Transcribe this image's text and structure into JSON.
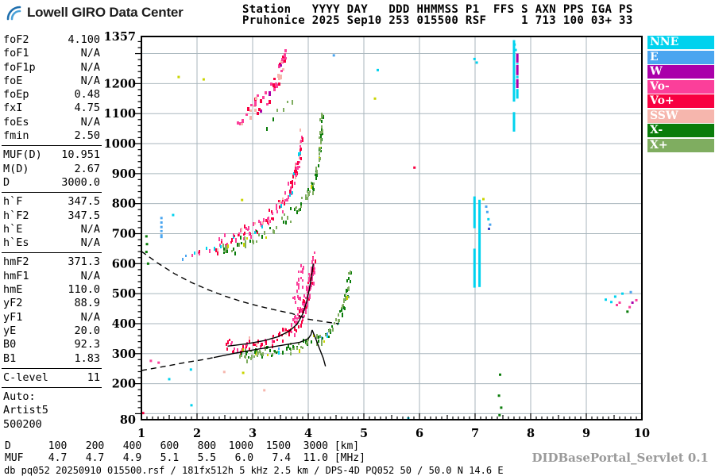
{
  "header": {
    "brand": "Lowell GIRO Data Center",
    "logo_color_dark": "#1f6fae",
    "logo_color_light": "#4aa1d8",
    "station_line1": "Station   YYYY DAY   DDD HHMMSS P1  FFS S AXN PPS IGA PS",
    "station_line2": "Pruhonice 2025 Sep10 253 015500 RSF     1 713 100 03+ 33"
  },
  "sidebar": {
    "groups": [
      {
        "rows": [
          [
            "foF2",
            "4.100"
          ],
          [
            "foF1",
            "N/A"
          ],
          [
            "foF1p",
            "N/A"
          ],
          [
            "foE",
            "N/A"
          ],
          [
            "foEp",
            "0.48"
          ],
          [
            "fxI",
            "4.75"
          ],
          [
            "foEs",
            "N/A"
          ],
          [
            "fmin",
            "2.50"
          ]
        ]
      },
      {
        "rows": [
          [
            "MUF(D)",
            "10.951"
          ],
          [
            "M(D)",
            "2.67"
          ],
          [
            "D",
            "3000.0"
          ]
        ]
      },
      {
        "rows": [
          [
            "h`F",
            "347.5"
          ],
          [
            "h`F2",
            "347.5"
          ],
          [
            "h`E",
            "N/A"
          ],
          [
            "h`Es",
            "N/A"
          ]
        ]
      },
      {
        "rows": [
          [
            "hmF2",
            "371.3"
          ],
          [
            "hmF1",
            "N/A"
          ],
          [
            "hmE",
            "110.0"
          ],
          [
            "yF2",
            "88.9"
          ],
          [
            "yF1",
            "N/A"
          ],
          [
            "yE",
            "20.0"
          ],
          [
            "B0",
            "92.3"
          ],
          [
            "B1",
            "1.83"
          ]
        ]
      },
      {
        "rows": [
          [
            "C-level",
            "11"
          ]
        ]
      },
      {
        "rows": [
          [
            "Auto:"
          ],
          [
            "Artist5"
          ],
          [
            "500200"
          ]
        ]
      }
    ]
  },
  "legend_order": [
    "NNE",
    "E",
    "W",
    "Vo-",
    "Vo+",
    "SSW",
    "X-",
    "X+"
  ],
  "footer": {
    "d_line": "D      100   200   400   600   800  1000  1500  3000 [km]",
    "muf_line": "MUF    4.7   4.7   4.9   5.1   5.5   6.0   7.4  11.0 [MHz]",
    "status_line": "db pq052 20250910 015500.rsf / 181fx512h 5 kHz 2.5 km / DPS-4D PQ052 50 / 50.0 N 14.6 E",
    "servlet": "DIDBasePortal_Servlet 0.1"
  },
  "chart_data": {
    "type": "scatter",
    "title": "ionogram",
    "seed": 7,
    "grid_color": "#a9b6bd",
    "signals": {
      "NNE": "#00d2ee",
      "E": "#4aa5f0",
      "W": "#aa00aa",
      "Vo-": "#fb3f9a",
      "Vo+": "#f80040",
      "SSW": "#f6b6ad",
      "X-": "#0a7c0a",
      "X+": "#7fad60",
      "yellow": "#c9d400",
      "blue": "#3a46c8"
    },
    "axes": {
      "x": {
        "min": 1,
        "max": 10,
        "unit": "MHz",
        "labels": [
          1,
          2,
          3,
          4,
          5,
          6,
          7,
          8,
          9,
          10
        ],
        "grid": [
          2,
          3,
          4,
          5,
          6,
          7,
          8,
          9
        ],
        "minor_step": 0.1
      },
      "y": {
        "min": 80,
        "max": 1357,
        "unit": "km",
        "labels": [
          1357,
          1200,
          1100,
          1000,
          900,
          800,
          700,
          600,
          500,
          400,
          300,
          200,
          80
        ],
        "grid": [
          100,
          200,
          300,
          400,
          500,
          600,
          700,
          800,
          900,
          1000,
          1100,
          1200,
          1300
        ],
        "minor_step": 20
      }
    },
    "traces": [
      {
        "name": "F1-O-flat",
        "colors": [
          [
            "Vo+",
            6
          ],
          [
            "Vo-",
            2
          ],
          [
            "SSW",
            2
          ]
        ],
        "spread": 10,
        "density": 0.85,
        "layers": 2,
        "step": 2.2,
        "points": [
          [
            2.5,
            328
          ],
          [
            2.8,
            334
          ],
          [
            3.1,
            343
          ],
          [
            3.35,
            355
          ],
          [
            3.55,
            371
          ],
          [
            3.7,
            390
          ]
        ]
      },
      {
        "name": "F1-O-steep",
        "colors": [
          [
            "Vo-",
            7
          ],
          [
            "Vo+",
            3
          ]
        ],
        "spread": 15,
        "density": 0.95,
        "layers": 3,
        "step": 1.8,
        "points": [
          [
            3.7,
            390
          ],
          [
            3.82,
            420
          ],
          [
            3.9,
            455
          ],
          [
            3.97,
            500
          ],
          [
            4.03,
            550
          ],
          [
            4.07,
            590
          ],
          [
            4.09,
            618
          ]
        ]
      },
      {
        "name": "F1-O-spreadF",
        "colors": [
          [
            "Vo-",
            1
          ]
        ],
        "spread": 20,
        "density": 0.5,
        "layers": 2,
        "step": 2.5,
        "points": [
          [
            3.72,
            470
          ],
          [
            3.78,
            505
          ],
          [
            3.83,
            540
          ],
          [
            3.87,
            575
          ],
          [
            3.9,
            600
          ]
        ]
      },
      {
        "name": "F1-X",
        "colors": [
          [
            "X+",
            5
          ],
          [
            "X-",
            4
          ],
          [
            "yellow",
            1
          ],
          [
            "E",
            0.5
          ],
          [
            "NNE",
            0.5
          ]
        ],
        "spread": 9,
        "density": 0.8,
        "layers": 2,
        "step": 2.2,
        "points": [
          [
            2.75,
            298
          ],
          [
            3.05,
            304
          ],
          [
            3.35,
            312
          ],
          [
            3.65,
            322
          ],
          [
            3.95,
            336
          ],
          [
            4.2,
            354
          ],
          [
            4.38,
            378
          ],
          [
            4.52,
            412
          ],
          [
            4.62,
            455
          ],
          [
            4.69,
            510
          ],
          [
            4.73,
            570
          ]
        ]
      },
      {
        "name": "F2-O-left",
        "colors": [
          [
            "NNE",
            3
          ],
          [
            "E",
            2
          ],
          [
            "Vo+",
            3
          ],
          [
            "Vo-",
            2
          ]
        ],
        "spread": 5,
        "density": 0.5,
        "layers": 1,
        "step": 3,
        "points": [
          [
            1.75,
            622
          ],
          [
            2.0,
            642
          ],
          [
            2.2,
            655
          ],
          [
            2.35,
            666
          ]
        ]
      },
      {
        "name": "F2-O",
        "colors": [
          [
            "Vo-",
            4
          ],
          [
            "Vo+",
            3
          ],
          [
            "SSW",
            1
          ],
          [
            "NNE",
            1
          ]
        ],
        "spread": 12,
        "density": 0.85,
        "layers": 2,
        "step": 2.2,
        "points": [
          [
            2.35,
            666
          ],
          [
            2.65,
            688
          ],
          [
            2.95,
            716
          ],
          [
            3.25,
            752
          ],
          [
            3.5,
            800
          ],
          [
            3.65,
            848
          ],
          [
            3.76,
            905
          ],
          [
            3.83,
            960
          ],
          [
            3.87,
            1030
          ]
        ]
      },
      {
        "name": "F2-X",
        "colors": [
          [
            "X+",
            5
          ],
          [
            "X-",
            4
          ],
          [
            "yellow",
            1
          ]
        ],
        "spread": 10,
        "density": 0.7,
        "layers": 2,
        "step": 2.6,
        "points": [
          [
            2.45,
            650
          ],
          [
            2.8,
            672
          ],
          [
            3.15,
            700
          ],
          [
            3.5,
            738
          ],
          [
            3.8,
            786
          ],
          [
            4.0,
            838
          ],
          [
            4.12,
            895
          ],
          [
            4.18,
            950
          ],
          [
            4.22,
            1040
          ],
          [
            4.24,
            1100
          ]
        ]
      },
      {
        "name": "F3-O",
        "colors": [
          [
            "Vo-",
            5
          ],
          [
            "Vo+",
            2
          ],
          [
            "SSW",
            2
          ],
          [
            "W",
            1
          ]
        ],
        "spread": 16,
        "density": 0.75,
        "layers": 2,
        "step": 2.4,
        "w": 3,
        "points": [
          [
            2.7,
            1060
          ],
          [
            2.95,
            1105
          ],
          [
            3.15,
            1145
          ],
          [
            3.35,
            1190
          ],
          [
            3.48,
            1240
          ],
          [
            3.57,
            1295
          ]
        ]
      },
      {
        "name": "F3-X",
        "colors": [
          [
            "X-",
            3
          ],
          [
            "X+",
            2
          ]
        ],
        "spread": 10,
        "density": 0.3,
        "layers": 1,
        "step": 3,
        "points": [
          [
            3.2,
            1070
          ],
          [
            3.45,
            1110
          ],
          [
            3.7,
            1150
          ]
        ]
      }
    ],
    "columns": [
      {
        "name": "rfi-7.0-a",
        "color": "NNE",
        "f": 6.99,
        "w": 3,
        "segments": [
          [
            520,
            650
          ],
          [
            718,
            824
          ]
        ]
      },
      {
        "name": "rfi-7.0-b",
        "color": "NNE",
        "f": 7.08,
        "w": 3,
        "segments": [
          [
            522,
            813
          ]
        ]
      },
      {
        "name": "rfi-7.7-cyan",
        "color": "NNE",
        "f": 7.7,
        "w": 3,
        "segments": [
          [
            1040,
            1105
          ],
          [
            1140,
            1345
          ]
        ]
      },
      {
        "name": "rfi-7.76-magenta",
        "color": "W",
        "f": 7.76,
        "w": 3,
        "segments": [
          [
            1185,
            1215
          ],
          [
            1228,
            1262
          ],
          [
            1270,
            1300
          ]
        ]
      },
      {
        "name": "rfi-7.76-cyan",
        "color": "NNE",
        "f": 7.76,
        "w": 3,
        "segments": [
          [
            1150,
            1182
          ],
          [
            1218,
            1226
          ],
          [
            1264,
            1268
          ]
        ]
      },
      {
        "name": "e-column-1.36",
        "color": "E",
        "f": 1.36,
        "w": 3,
        "segments": [
          [
            685,
            698
          ],
          [
            705,
            712
          ],
          [
            718,
            726
          ],
          [
            733,
            741
          ],
          [
            748,
            756
          ]
        ]
      }
    ],
    "lines": [
      {
        "name": "muf-transmission-curve",
        "style": "dashed",
        "points": [
          [
            1.0,
            641
          ],
          [
            1.3,
            601
          ],
          [
            1.6,
            566
          ],
          [
            1.9,
            537
          ],
          [
            2.2,
            513
          ],
          [
            2.5,
            492
          ],
          [
            2.8,
            474
          ],
          [
            3.1,
            459
          ],
          [
            3.4,
            446
          ],
          [
            3.7,
            434
          ],
          [
            4.0,
            415
          ],
          [
            4.3,
            406
          ],
          [
            4.55,
            400
          ]
        ]
      },
      {
        "name": "profile-model-dashed",
        "style": "dashed",
        "points": [
          [
            1.0,
            244
          ],
          [
            1.4,
            257
          ],
          [
            1.8,
            271
          ],
          [
            2.1,
            280
          ],
          [
            2.3,
            287
          ]
        ]
      },
      {
        "name": "profile-solid",
        "style": "solid",
        "points": [
          [
            2.3,
            287
          ],
          [
            2.7,
            302
          ],
          [
            3.1,
            315
          ],
          [
            3.5,
            327
          ],
          [
            3.85,
            338
          ],
          [
            4.0,
            350
          ],
          [
            4.05,
            364
          ],
          [
            4.07,
            379
          ]
        ]
      },
      {
        "name": "profile-tail",
        "style": "solid",
        "points": [
          [
            4.07,
            379
          ],
          [
            4.13,
            352
          ],
          [
            4.2,
            318
          ],
          [
            4.27,
            285
          ],
          [
            4.31,
            258
          ]
        ]
      },
      {
        "name": "trace-fit",
        "style": "solid",
        "points": [
          [
            2.55,
            325
          ],
          [
            2.9,
            333
          ],
          [
            3.2,
            343
          ],
          [
            3.45,
            356
          ],
          [
            3.65,
            374
          ],
          [
            3.8,
            398
          ],
          [
            3.9,
            432
          ],
          [
            3.97,
            472
          ],
          [
            4.02,
            515
          ],
          [
            4.06,
            558
          ],
          [
            4.09,
            600
          ]
        ]
      }
    ],
    "points": [
      [
        1.03,
        102,
        "Vo+"
      ],
      [
        1.17,
        276,
        "Vo-"
      ],
      [
        1.31,
        270,
        "Vo-"
      ],
      [
        1.5,
        215,
        "NNE"
      ],
      [
        1.89,
        247,
        "NNE"
      ],
      [
        1.9,
        128,
        "NNE"
      ],
      [
        2.49,
        239,
        "SSW"
      ],
      [
        3.21,
        178,
        "SSW"
      ],
      [
        2.83,
        236,
        "yellow"
      ],
      [
        1.57,
        762,
        "NNE"
      ],
      [
        1.09,
        691,
        "X-"
      ],
      [
        1.1,
        665,
        "X-"
      ],
      [
        1.09,
        639,
        "X-"
      ],
      [
        1.12,
        600,
        "X-"
      ],
      [
        1.67,
        1222,
        "yellow"
      ],
      [
        2.12,
        1214,
        "yellow"
      ],
      [
        2.81,
        812,
        "yellow"
      ],
      [
        5.2,
        1150,
        "yellow"
      ],
      [
        5.91,
        920,
        "Vo+"
      ],
      [
        5.8,
        84,
        "NNE"
      ],
      [
        4.46,
        1294,
        "E"
      ],
      [
        5.25,
        1245,
        "NNE"
      ],
      [
        6.99,
        1282,
        "NNE"
      ],
      [
        7.03,
        1270,
        "NNE"
      ],
      [
        7.71,
        1330,
        "NNE"
      ],
      [
        7.73,
        1312,
        "NNE"
      ],
      [
        7.15,
        815,
        "yellow"
      ],
      [
        7.2,
        790,
        "E"
      ],
      [
        7.22,
        772,
        "E"
      ],
      [
        7.24,
        748,
        "NNE"
      ],
      [
        7.27,
        730,
        "E"
      ],
      [
        7.25,
        716,
        "blue"
      ],
      [
        7.45,
        230,
        "X-"
      ],
      [
        7.43,
        160,
        "X-"
      ],
      [
        7.47,
        120,
        "X-"
      ],
      [
        7.44,
        95,
        "X-"
      ],
      [
        9.35,
        480,
        "NNE"
      ],
      [
        9.45,
        472,
        "NNE"
      ],
      [
        9.52,
        490,
        "NNE"
      ],
      [
        9.55,
        462,
        "Vo-"
      ],
      [
        9.6,
        470,
        "Vo-"
      ],
      [
        9.65,
        500,
        "NNE"
      ],
      [
        9.78,
        455,
        "Vo-"
      ],
      [
        9.8,
        505,
        "E"
      ],
      [
        9.83,
        470,
        "W"
      ],
      [
        9.9,
        478,
        "Vo-"
      ],
      [
        9.74,
        440,
        "X-"
      ]
    ]
  }
}
